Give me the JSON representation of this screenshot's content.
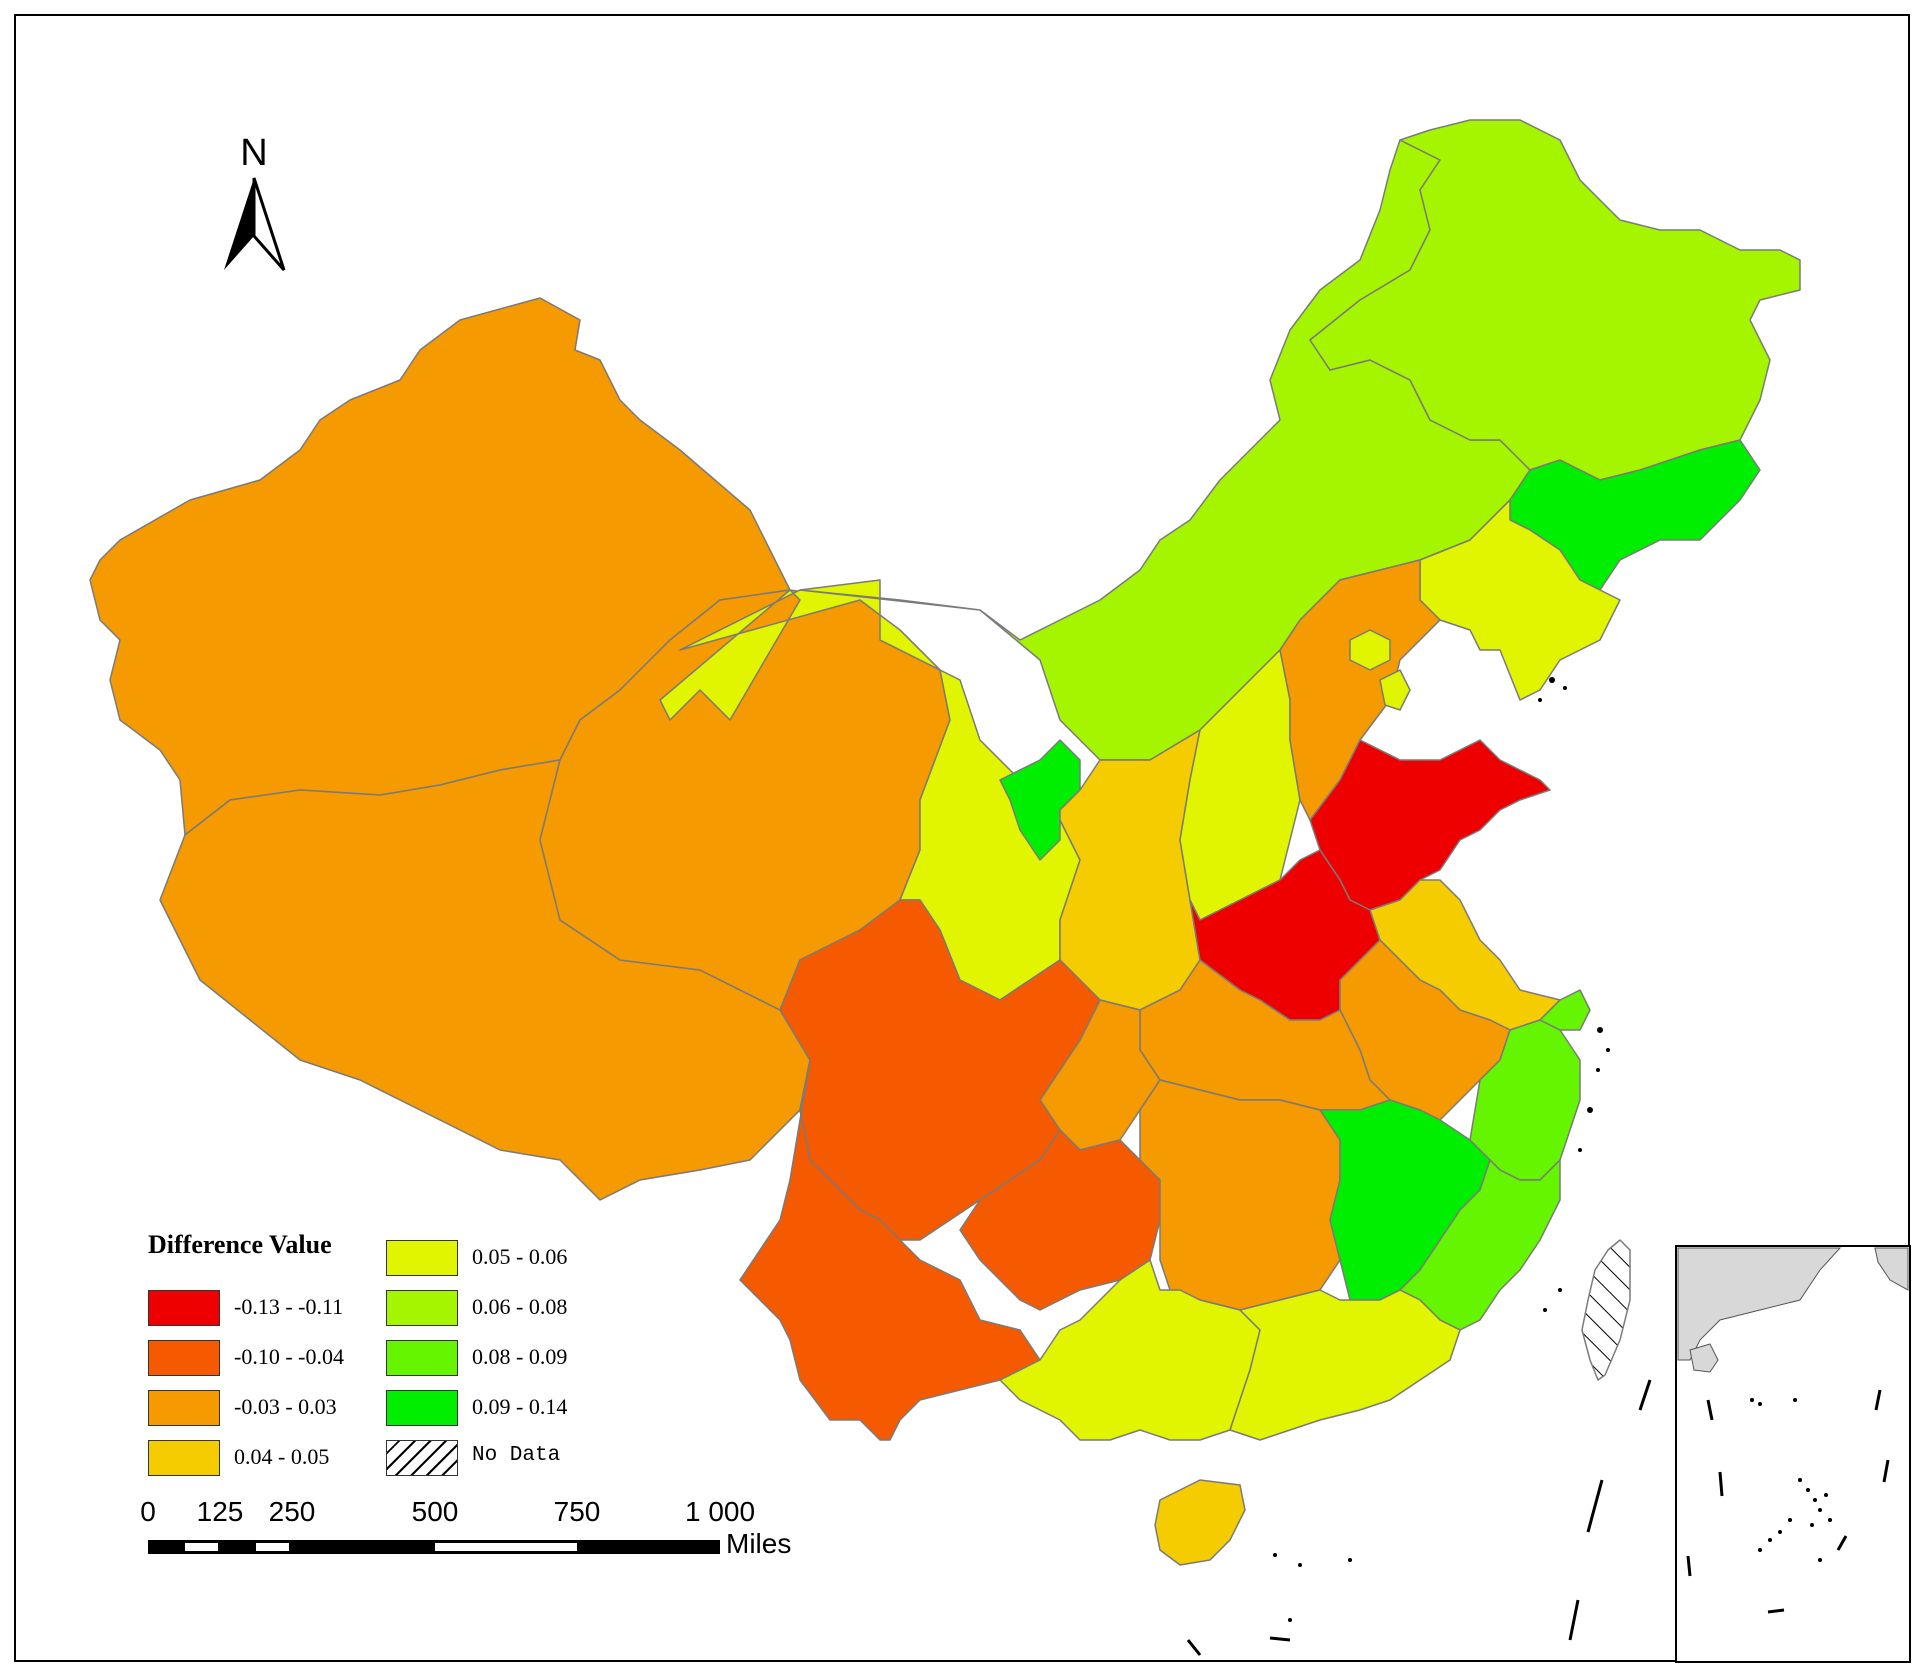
{
  "north_arrow": {
    "label": "N",
    "icon": "north-arrow-icon"
  },
  "legend": {
    "title": "Difference Value",
    "classes": [
      {
        "key": "c1",
        "label": "-0.13 - -0.11",
        "color": "#ee0000"
      },
      {
        "key": "c2",
        "label": "-0.10 - -0.04",
        "color": "#f55a00"
      },
      {
        "key": "c3",
        "label": "-0.03 - 0.03",
        "color": "#f59a00"
      },
      {
        "key": "c4",
        "label": "0.04 - 0.05",
        "color": "#f5cc00"
      },
      {
        "key": "c5",
        "label": "0.05 - 0.06",
        "color": "#e1f500"
      },
      {
        "key": "c6",
        "label": "0.06 - 0.08",
        "color": "#a6f500"
      },
      {
        "key": "c7",
        "label": "0.08 - 0.09",
        "color": "#66f500"
      },
      {
        "key": "c8",
        "label": "0.09 - 0.14",
        "color": "#00ee00"
      },
      {
        "key": "nodata",
        "label": "No Data",
        "color": "#ffffff",
        "pattern": "hatch"
      }
    ]
  },
  "scale_bar": {
    "ticks": [
      "0",
      "125",
      "250",
      "500",
      "750",
      "1 000"
    ],
    "unit": "Miles"
  },
  "regions": [
    {
      "name": "Xinjiang",
      "class": "c3"
    },
    {
      "name": "Tibet",
      "class": "c3"
    },
    {
      "name": "Qinghai",
      "class": "c3"
    },
    {
      "name": "Gansu",
      "class": "c5"
    },
    {
      "name": "Inner Mongolia",
      "class": "c6"
    },
    {
      "name": "Heilongjiang",
      "class": "c6"
    },
    {
      "name": "Jilin",
      "class": "c8"
    },
    {
      "name": "Liaoning",
      "class": "c5"
    },
    {
      "name": "Ningxia",
      "class": "c8"
    },
    {
      "name": "Shaanxi",
      "class": "c4"
    },
    {
      "name": "Shanxi",
      "class": "c5"
    },
    {
      "name": "Hebei",
      "class": "c3"
    },
    {
      "name": "Beijing",
      "class": "c5"
    },
    {
      "name": "Tianjin",
      "class": "c5"
    },
    {
      "name": "Shandong",
      "class": "c1"
    },
    {
      "name": "Henan",
      "class": "c1"
    },
    {
      "name": "Jiangsu",
      "class": "c4"
    },
    {
      "name": "Anhui",
      "class": "c3"
    },
    {
      "name": "Hubei",
      "class": "c3"
    },
    {
      "name": "Chongqing",
      "class": "c3"
    },
    {
      "name": "Sichuan",
      "class": "c2"
    },
    {
      "name": "Yunnan",
      "class": "c2"
    },
    {
      "name": "Guizhou",
      "class": "c2"
    },
    {
      "name": "Hunan",
      "class": "c3"
    },
    {
      "name": "Jiangxi",
      "class": "c8"
    },
    {
      "name": "Zhejiang",
      "class": "c7"
    },
    {
      "name": "Shanghai",
      "class": "c7"
    },
    {
      "name": "Fujian",
      "class": "c7"
    },
    {
      "name": "Guangxi",
      "class": "c5"
    },
    {
      "name": "Guangdong",
      "class": "c5"
    },
    {
      "name": "Hainan",
      "class": "c4"
    },
    {
      "name": "Taiwan",
      "class": "nodata"
    }
  ]
}
